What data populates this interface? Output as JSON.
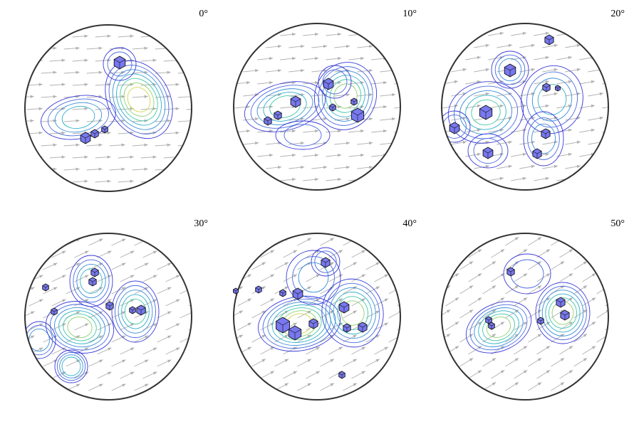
{
  "panels": [
    {
      "label": "0°"
    },
    {
      "label": "10°"
    },
    {
      "label": "20°"
    },
    {
      "label": "30°"
    },
    {
      "label": "40°"
    },
    {
      "label": "50°"
    }
  ]
}
